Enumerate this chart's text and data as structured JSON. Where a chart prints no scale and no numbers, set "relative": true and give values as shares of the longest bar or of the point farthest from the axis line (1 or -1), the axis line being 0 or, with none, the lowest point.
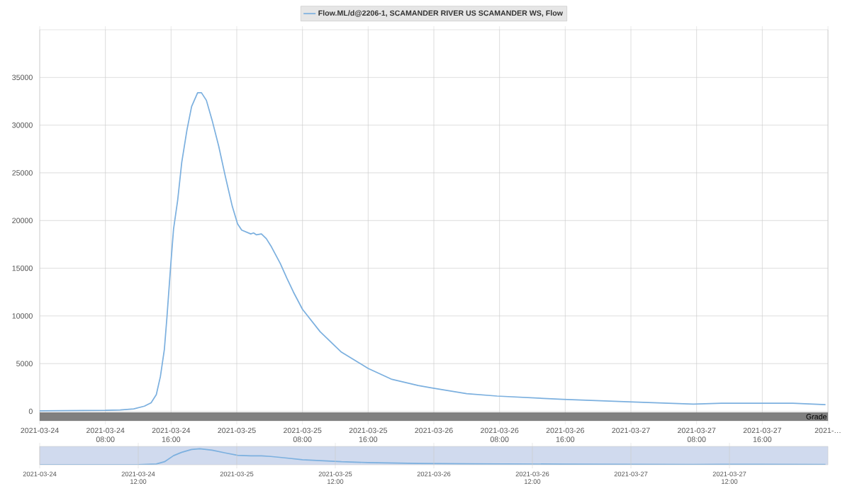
{
  "chart_data": [
    {
      "type": "line",
      "x": [
        "2021-03-24T00:00",
        "2021-03-24T08:00",
        "2021-03-24T09:48",
        "2021-03-24T11:27",
        "2021-03-24T12:45",
        "2021-03-24T13:34",
        "2021-03-24T14:12",
        "2021-03-24T14:42",
        "2021-03-24T15:11",
        "2021-03-24T15:30",
        "2021-03-24T15:56",
        "2021-03-24T16:18",
        "2021-03-24T16:48",
        "2021-03-24T17:18",
        "2021-03-24T17:56",
        "2021-03-24T18:30",
        "2021-03-24T19:14",
        "2021-03-24T19:42",
        "2021-03-24T20:18",
        "2021-03-24T21:00",
        "2021-03-24T21:48",
        "2021-03-24T22:36",
        "2021-03-24T23:27",
        "2021-03-25T00:06",
        "2021-03-25T00:36",
        "2021-03-25T01:42",
        "2021-03-25T02:03",
        "2021-03-25T02:24",
        "2021-03-25T03:00",
        "2021-03-25T03:36",
        "2021-03-25T04:09",
        "2021-03-25T05:18",
        "2021-03-25T06:06",
        "2021-03-25T06:54",
        "2021-03-25T08:00",
        "2021-03-25T10:09",
        "2021-03-25T12:45",
        "2021-03-25T16:00",
        "2021-03-25T18:54",
        "2021-03-25T22:06",
        "2021-03-25T23:48",
        "2021-03-26T04:00",
        "2021-03-26T07:42",
        "2021-03-26T15:42",
        "2021-03-26T23:42",
        "2021-03-27T07:36",
        "2021-03-27T11:06",
        "2021-03-27T15:42",
        "2021-03-27T19:42",
        "2021-03-27T23:42"
      ],
      "series": [
        {
          "name": "Flow.ML/d@2206-1, SCAMANDER RIVER US SCAMANDER WS, Flow",
          "color": "#7cb0df",
          "values": [
            50,
            100,
            150,
            260,
            540,
            900,
            1750,
            3650,
            6500,
            9900,
            15050,
            19100,
            22100,
            26100,
            29500,
            31950,
            33400,
            33400,
            32600,
            30500,
            27800,
            24650,
            21500,
            19650,
            19000,
            18600,
            18700,
            18500,
            18600,
            18100,
            17350,
            15500,
            13950,
            12500,
            10700,
            8350,
            6200,
            4500,
            3350,
            2700,
            2450,
            1850,
            1600,
            1250,
            1000,
            750,
            850,
            850,
            850,
            700
          ]
        }
      ],
      "xlim": [
        "2021-03-24T00:00",
        "2021-03-28T00:00"
      ],
      "ylim": [
        -1000,
        40000
      ],
      "xticks": [
        {
          "value": "2021-03-24T00:00",
          "label": "2021-03-24"
        },
        {
          "value": "2021-03-24T08:00",
          "label": "2021-03-24 08:00"
        },
        {
          "value": "2021-03-24T16:00",
          "label": "2021-03-24 16:00"
        },
        {
          "value": "2021-03-25T00:00",
          "label": "2021-03-25"
        },
        {
          "value": "2021-03-25T08:00",
          "label": "2021-03-25 08:00"
        },
        {
          "value": "2021-03-25T16:00",
          "label": "2021-03-25 16:00"
        },
        {
          "value": "2021-03-26T00:00",
          "label": "2021-03-26"
        },
        {
          "value": "2021-03-26T08:00",
          "label": "2021-03-26 08:00"
        },
        {
          "value": "2021-03-26T16:00",
          "label": "2021-03-26 16:00"
        },
        {
          "value": "2021-03-27T00:00",
          "label": "2021-03-27"
        },
        {
          "value": "2021-03-27T08:00",
          "label": "2021-03-27 08:00"
        },
        {
          "value": "2021-03-27T16:00",
          "label": "2021-03-27 16:00"
        },
        {
          "value": "2021-03-28T00:00",
          "label": "2021-…"
        }
      ],
      "yticks": [
        0,
        5000,
        10000,
        15000,
        20000,
        25000,
        30000,
        35000
      ],
      "bands": [
        {
          "axis": "y",
          "from": -1000,
          "to": -100,
          "label": "Grade",
          "color": "#808080"
        }
      ],
      "grid": true,
      "legend": "top"
    },
    {
      "type": "line",
      "relative": true,
      "x": [
        "2021-03-24T00:00",
        "2021-03-24T12:00",
        "2021-03-24T14:12",
        "2021-03-24T15:12",
        "2021-03-24T16:18",
        "2021-03-24T17:18",
        "2021-03-24T18:30",
        "2021-03-24T19:30",
        "2021-03-24T21:00",
        "2021-03-24T22:36",
        "2021-03-25T00:06",
        "2021-03-25T01:42",
        "2021-03-25T03:00",
        "2021-03-25T04:09",
        "2021-03-25T06:06",
        "2021-03-25T08:00",
        "2021-03-25T12:45",
        "2021-03-25T16:00",
        "2021-03-25T22:06",
        "2021-03-26T04:00",
        "2021-03-26T15:42",
        "2021-03-27T07:36",
        "2021-03-27T15:42",
        "2021-03-27T23:42"
      ],
      "series": [
        {
          "color": "#7cb0df",
          "values": [
            0.0,
            0.01,
            0.05,
            0.19,
            0.57,
            0.78,
            0.96,
            1.0,
            0.91,
            0.74,
            0.59,
            0.56,
            0.56,
            0.52,
            0.42,
            0.32,
            0.19,
            0.14,
            0.08,
            0.06,
            0.04,
            0.02,
            0.03,
            0.02
          ]
        }
      ],
      "xlim": [
        "2021-03-24T00:00",
        "2021-03-28T00:00"
      ],
      "xticks": [
        {
          "value": "2021-03-24T00:00",
          "label": "2021-03-24"
        },
        {
          "value": "2021-03-24T12:00",
          "label": "2021-03-24 12:00"
        },
        {
          "value": "2021-03-25T00:00",
          "label": "2021-03-25"
        },
        {
          "value": "2021-03-25T12:00",
          "label": "2021-03-25 12:00"
        },
        {
          "value": "2021-03-26T00:00",
          "label": "2021-03-26"
        },
        {
          "value": "2021-03-26T12:00",
          "label": "2021-03-26 12:00"
        },
        {
          "value": "2021-03-27T00:00",
          "label": "2021-03-27"
        },
        {
          "value": "2021-03-27T12:00",
          "label": "2021-03-27 12:00"
        }
      ],
      "bands": [
        {
          "axis": "x",
          "from": "2021-03-24T00:00",
          "to": "2021-03-28T00:00",
          "color": "#d0daee"
        }
      ],
      "grid": "x",
      "tick_labels": "x"
    }
  ]
}
